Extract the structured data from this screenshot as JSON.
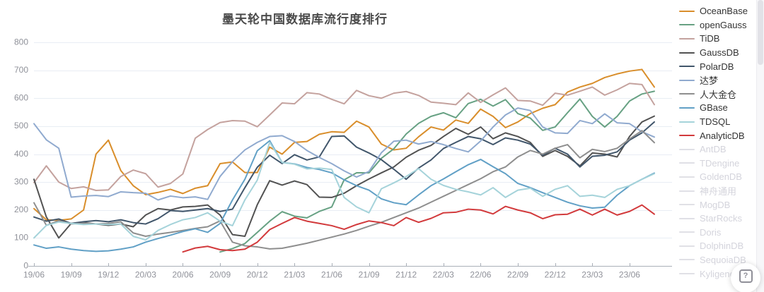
{
  "page": {
    "title": "墨天轮中国数据库流行度排行"
  },
  "widgets": {
    "help_badge_glyph": "?"
  },
  "styles": {
    "grid_color": "#e8edf4",
    "axis_color": "#aab0b8",
    "label_color": "#8f9199",
    "title_color": "#4a4a4a",
    "inactive_legend_text": "#d4d4dc",
    "inactive_legend_swatch": "#e0e0e6",
    "background": "#ffffff"
  },
  "chart_data": {
    "type": "line",
    "title": "墨天轮中国数据库流行度排行",
    "xlabel": "",
    "ylabel": "",
    "ylim": [
      0,
      800
    ],
    "y_ticks": [
      0,
      100,
      200,
      300,
      400,
      500,
      600,
      700,
      800
    ],
    "grid": true,
    "legend_position": "right",
    "x": [
      "19/06",
      "19/07",
      "19/08",
      "19/09",
      "19/10",
      "19/11",
      "19/12",
      "20/01",
      "20/02",
      "20/03",
      "20/04",
      "20/05",
      "20/06",
      "20/07",
      "20/08",
      "20/09",
      "20/10",
      "20/11",
      "20/12",
      "21/01",
      "21/02",
      "21/03",
      "21/04",
      "21/05",
      "21/06",
      "21/07",
      "21/08",
      "21/09",
      "21/10",
      "21/11",
      "21/12",
      "22/01",
      "22/02",
      "22/03",
      "22/04",
      "22/05",
      "22/06",
      "22/07",
      "22/08",
      "22/09",
      "22/10",
      "22/11",
      "22/12",
      "23/01",
      "23/02",
      "23/03",
      "23/04",
      "23/05",
      "23/06",
      "23/07",
      "23/08"
    ],
    "x_tick_labels": [
      "19/06",
      "19/09",
      "19/12",
      "20/03",
      "20/06",
      "20/09",
      "20/12",
      "21/03",
      "21/06",
      "21/09",
      "21/12",
      "22/03",
      "22/06",
      "22/09",
      "22/12",
      "23/03",
      "23/06"
    ],
    "x_tick_every": 3,
    "series": [
      {
        "name": "OceanBase",
        "color": "#d98e2b",
        "values": [
          205,
          165,
          163,
          168,
          200,
          400,
          450,
          341,
          287,
          255,
          263,
          274,
          259,
          278,
          287,
          366,
          372,
          334,
          334,
          425,
          400,
          442,
          445,
          471,
          480,
          478,
          518,
          497,
          436,
          415,
          421,
          462,
          497,
          486,
          522,
          510,
          561,
          535,
          495,
          515,
          545,
          564,
          577,
          622,
          640,
          653,
          674,
          687,
          697,
          703,
          640
        ]
      },
      {
        "name": "openGauss",
        "color": "#67a183",
        "values": [
          null,
          null,
          null,
          null,
          null,
          null,
          null,
          null,
          null,
          null,
          null,
          null,
          null,
          null,
          null,
          50,
          62,
          80,
          120,
          160,
          194,
          178,
          172,
          195,
          211,
          308,
          333,
          333,
          385,
          419,
          472,
          510,
          535,
          548,
          530,
          581,
          596,
          572,
          595,
          545,
          529,
          485,
          497,
          548,
          597,
          535,
          497,
          535,
          590,
          615,
          625
        ]
      },
      {
        "name": "TiDB",
        "color": "#c4a29e",
        "values": [
          298,
          358,
          300,
          277,
          283,
          270,
          272,
          320,
          343,
          330,
          282,
          295,
          329,
          457,
          488,
          513,
          520,
          518,
          498,
          540,
          583,
          580,
          620,
          615,
          596,
          580,
          628,
          609,
          600,
          618,
          624,
          610,
          586,
          582,
          577,
          619,
          585,
          612,
          637,
          592,
          590,
          575,
          618,
          611,
          625,
          640,
          611,
          630,
          653,
          649,
          577
        ]
      },
      {
        "name": "GaussDB",
        "color": "#525252",
        "values": [
          310,
          175,
          100,
          152,
          155,
          150,
          145,
          150,
          140,
          182,
          205,
          200,
          211,
          213,
          218,
          182,
          112,
          106,
          219,
          305,
          289,
          304,
          291,
          246,
          245,
          260,
          287,
          311,
          333,
          354,
          389,
          414,
          431,
          463,
          492,
          471,
          497,
          455,
          476,
          463,
          442,
          392,
          413,
          392,
          358,
          404,
          400,
          390,
          463,
          515,
          536
        ]
      },
      {
        "name": "PolarDB",
        "color": "#41566b",
        "values": [
          175,
          160,
          168,
          152,
          158,
          162,
          158,
          165,
          155,
          150,
          169,
          198,
          195,
          200,
          205,
          195,
          203,
          280,
          353,
          396,
          366,
          398,
          379,
          390,
          463,
          465,
          425,
          404,
          380,
          346,
          310,
          350,
          379,
          420,
          442,
          463,
          455,
          434,
          458,
          450,
          436,
          396,
          421,
          400,
          354,
          392,
          396,
          408,
          450,
          476,
          515
        ]
      },
      {
        "name": "达梦",
        "color": "#90aacf",
        "values": [
          509,
          451,
          421,
          246,
          250,
          252,
          248,
          265,
          262,
          260,
          236,
          250,
          244,
          247,
          238,
          320,
          373,
          415,
          442,
          463,
          466,
          445,
          413,
          388,
          366,
          340,
          318,
          338,
          405,
          446,
          450,
          436,
          445,
          434,
          420,
          408,
          447,
          497,
          540,
          565,
          556,
          497,
          476,
          474,
          520,
          509,
          544,
          512,
          509,
          480,
          461
        ]
      },
      {
        "name": "人大金仓",
        "color": "#8e8e8e",
        "values": [
          226,
          145,
          162,
          150,
          153,
          150,
          152,
          158,
          118,
          106,
          114,
          120,
          127,
          134,
          140,
          161,
          85,
          72,
          68,
          61,
          63,
          72,
          81,
          92,
          103,
          114,
          127,
          142,
          156,
          173,
          190,
          207,
          228,
          249,
          270,
          291,
          312,
          337,
          354,
          390,
          413,
          400,
          421,
          434,
          387,
          417,
          409,
          421,
          454,
          484,
          441
        ]
      },
      {
        "name": "GBase",
        "color": "#61a0c6",
        "values": [
          75,
          63,
          68,
          60,
          55,
          52,
          54,
          60,
          68,
          85,
          98,
          110,
          123,
          133,
          120,
          152,
          236,
          310,
          412,
          448,
          370,
          365,
          352,
          345,
          333,
          308,
          287,
          271,
          240,
          226,
          219,
          254,
          287,
          311,
          337,
          362,
          381,
          355,
          330,
          295,
          280,
          262,
          245,
          228,
          215,
          207,
          210,
          253,
          287,
          310,
          332
        ]
      },
      {
        "name": "TDSQL",
        "color": "#a5d3da",
        "values": [
          100,
          145,
          157,
          152,
          148,
          150,
          148,
          150,
          106,
          93,
          127,
          148,
          165,
          173,
          190,
          160,
          144,
          236,
          307,
          442,
          370,
          364,
          347,
          350,
          345,
          245,
          211,
          190,
          276,
          297,
          320,
          348,
          310,
          288,
          274,
          265,
          254,
          280,
          245,
          271,
          278,
          249,
          274,
          287,
          249,
          253,
          245,
          274,
          287,
          310,
          330
        ]
      },
      {
        "name": "AnalyticDB",
        "color": "#d23a3c",
        "values": [
          null,
          null,
          null,
          null,
          null,
          null,
          null,
          null,
          null,
          null,
          null,
          null,
          50,
          64,
          70,
          58,
          55,
          60,
          85,
          130,
          152,
          173,
          160,
          152,
          144,
          131,
          148,
          161,
          155,
          144,
          173,
          156,
          170,
          190,
          192,
          203,
          200,
          186,
          213,
          200,
          190,
          169,
          183,
          185,
          203,
          182,
          203,
          182,
          195,
          218,
          185
        ]
      }
    ],
    "inactive_series": [
      "AntDB",
      "TDengine",
      "GoldenDB",
      "神舟通用",
      "MogDB",
      "StarRocks",
      "Doris",
      "DolphinDB",
      "SequoiaDB",
      "Kyligence"
    ]
  }
}
